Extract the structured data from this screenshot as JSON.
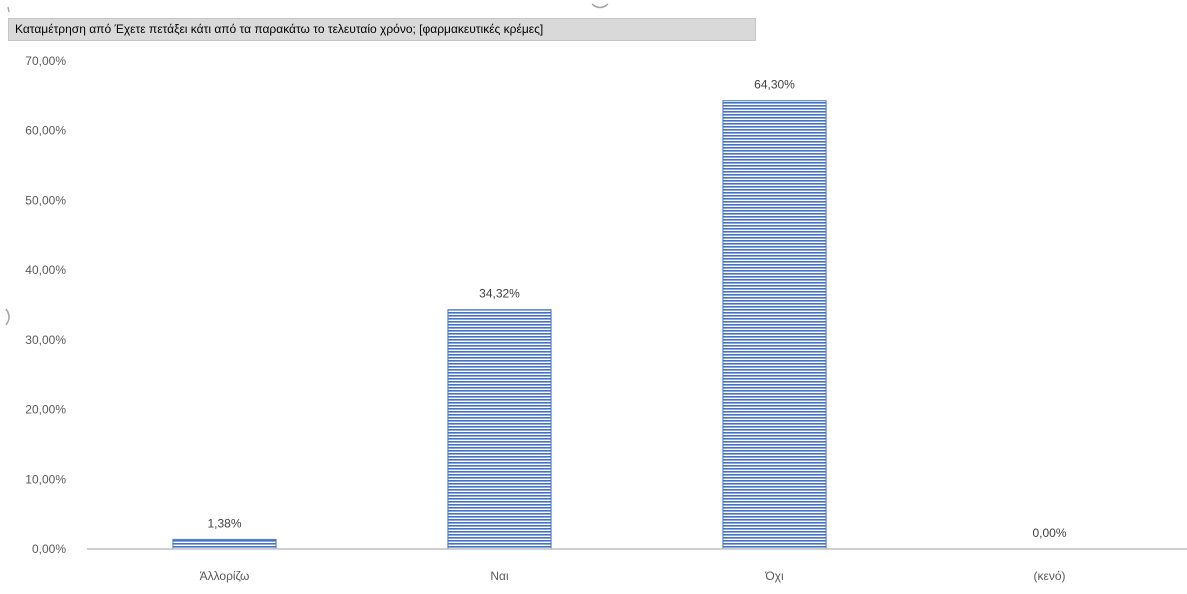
{
  "chart_field_button": "Καταμέτρηση από Έχετε πετάξει κάτι από τα παρακάτω το τελευταίο χρόνο; [φαρμακευτικές κρέμες]",
  "chart_data": {
    "type": "bar",
    "categories": [
      "Άλλορίζω",
      "Ναι",
      "Όχι",
      "(κενό)"
    ],
    "values": [
      1.38,
      34.32,
      64.3,
      0.0
    ],
    "data_labels": [
      "1,38%",
      "34,32%",
      "64,30%",
      "0,00%"
    ],
    "ylim": [
      0,
      70
    ],
    "yticks": [
      "0,00%",
      "10,00%",
      "20,00%",
      "30,00%",
      "40,00%",
      "50,00%",
      "60,00%",
      "70,00%"
    ],
    "xlabel": "",
    "ylabel": "",
    "grid": false,
    "legend": "none",
    "bar_color": "#4472c4",
    "bar_pattern": "horizontal-stripes"
  }
}
